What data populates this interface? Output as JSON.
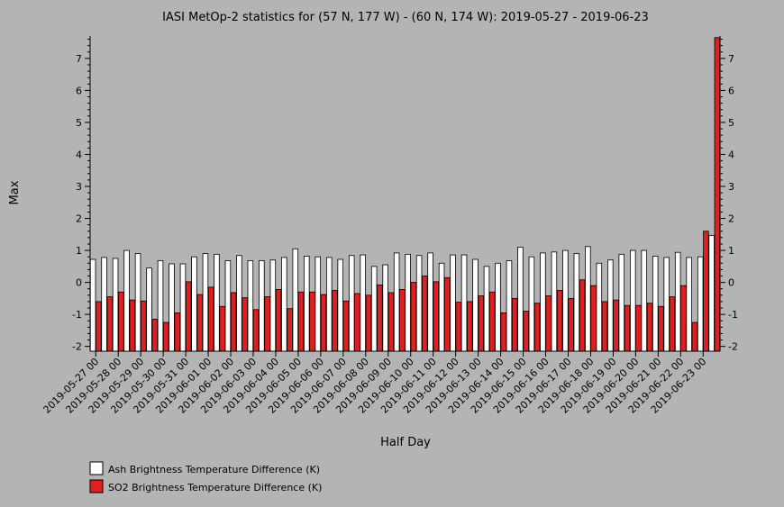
{
  "chart_data": {
    "type": "bar",
    "title": "IASI MetOp-2 statistics for (57 N, 177 W) - (60 N, 174 W): 2019-05-27 - 2019-06-23",
    "xlabel": "Half Day",
    "ylabel": "Max",
    "ylim": [
      -2.15,
      7.7
    ],
    "yticks": [
      -2,
      -1,
      0,
      1,
      2,
      3,
      4,
      5,
      6,
      7
    ],
    "grid": false,
    "legend_position": "bottom-left",
    "x_tick_labels": [
      "2019-05-27 00",
      "2019-05-28 00",
      "2019-05-29 00",
      "2019-05-30 00",
      "2019-05-31 00",
      "2019-06-01 00",
      "2019-06-02 00",
      "2019-06-03 00",
      "2019-06-04 00",
      "2019-06-05 00",
      "2019-06-06 00",
      "2019-06-07 00",
      "2019-06-08 00",
      "2019-06-09 00",
      "2019-06-10 00",
      "2019-06-11 00",
      "2019-06-12 00",
      "2019-06-13 00",
      "2019-06-14 00",
      "2019-06-15 00",
      "2019-06-16 00",
      "2019-06-17 00",
      "2019-06-18 00",
      "2019-06-19 00",
      "2019-06-20 00",
      "2019-06-21 00",
      "2019-06-22 00",
      "2019-06-23 00"
    ],
    "categories": [
      "2019-05-27 00",
      "2019-05-27 12",
      "2019-05-28 00",
      "2019-05-28 12",
      "2019-05-29 00",
      "2019-05-29 12",
      "2019-05-30 00",
      "2019-05-30 12",
      "2019-05-31 00",
      "2019-05-31 12",
      "2019-06-01 00",
      "2019-06-01 12",
      "2019-06-02 00",
      "2019-06-02 12",
      "2019-06-03 00",
      "2019-06-03 12",
      "2019-06-04 00",
      "2019-06-04 12",
      "2019-06-05 00",
      "2019-06-05 12",
      "2019-06-06 00",
      "2019-06-06 12",
      "2019-06-07 00",
      "2019-06-07 12",
      "2019-06-08 00",
      "2019-06-08 12",
      "2019-06-09 00",
      "2019-06-09 12",
      "2019-06-10 00",
      "2019-06-10 12",
      "2019-06-11 00",
      "2019-06-11 12",
      "2019-06-12 00",
      "2019-06-12 12",
      "2019-06-13 00",
      "2019-06-13 12",
      "2019-06-14 00",
      "2019-06-14 12",
      "2019-06-15 00",
      "2019-06-15 12",
      "2019-06-16 00",
      "2019-06-16 12",
      "2019-06-17 00",
      "2019-06-17 12",
      "2019-06-18 00",
      "2019-06-18 12",
      "2019-06-19 00",
      "2019-06-19 12",
      "2019-06-20 00",
      "2019-06-20 12",
      "2019-06-21 00",
      "2019-06-21 12",
      "2019-06-22 00",
      "2019-06-22 12",
      "2019-06-23 00",
      "2019-06-23 12"
    ],
    "series": [
      {
        "name": "Ash Brightness Temperature Difference (K)",
        "color": "#ffffff",
        "values": [
          0.72,
          0.78,
          0.75,
          1.0,
          0.9,
          0.45,
          0.68,
          0.58,
          0.58,
          0.8,
          0.9,
          0.88,
          0.68,
          0.84,
          0.68,
          0.68,
          0.7,
          0.78,
          1.05,
          0.82,
          0.8,
          0.78,
          0.72,
          0.84,
          0.86,
          0.5,
          0.55,
          0.92,
          0.88,
          0.84,
          0.92,
          0.6,
          0.86,
          0.86,
          0.72,
          0.5,
          0.6,
          0.68,
          1.1,
          0.8,
          0.92,
          0.95,
          1.0,
          0.9,
          1.12,
          0.6,
          0.7,
          0.88,
          1.0,
          1.0,
          0.82,
          0.78,
          0.94,
          0.78,
          0.8,
          1.47
        ]
      },
      {
        "name": "SO2 Brightness Temperature Difference (K)",
        "color": "#e02020",
        "values": [
          -0.6,
          -0.45,
          -0.3,
          -0.55,
          -0.58,
          -1.15,
          -1.25,
          -0.95,
          0.02,
          -0.38,
          -0.15,
          -0.75,
          -0.32,
          -0.48,
          -0.85,
          -0.45,
          -0.22,
          -0.82,
          -0.3,
          -0.3,
          -0.38,
          -0.25,
          -0.58,
          -0.35,
          -0.4,
          -0.08,
          -0.32,
          -0.22,
          0.0,
          0.2,
          0.02,
          0.15,
          -0.62,
          -0.6,
          -0.42,
          -0.3,
          -0.95,
          -0.5,
          -0.9,
          -0.65,
          -0.42,
          -0.25,
          -0.5,
          0.08,
          -0.1,
          -0.6,
          -0.55,
          -0.72,
          -0.72,
          -0.65,
          -0.75,
          -0.45,
          -0.1,
          -1.25,
          1.6,
          7.65
        ]
      }
    ]
  }
}
